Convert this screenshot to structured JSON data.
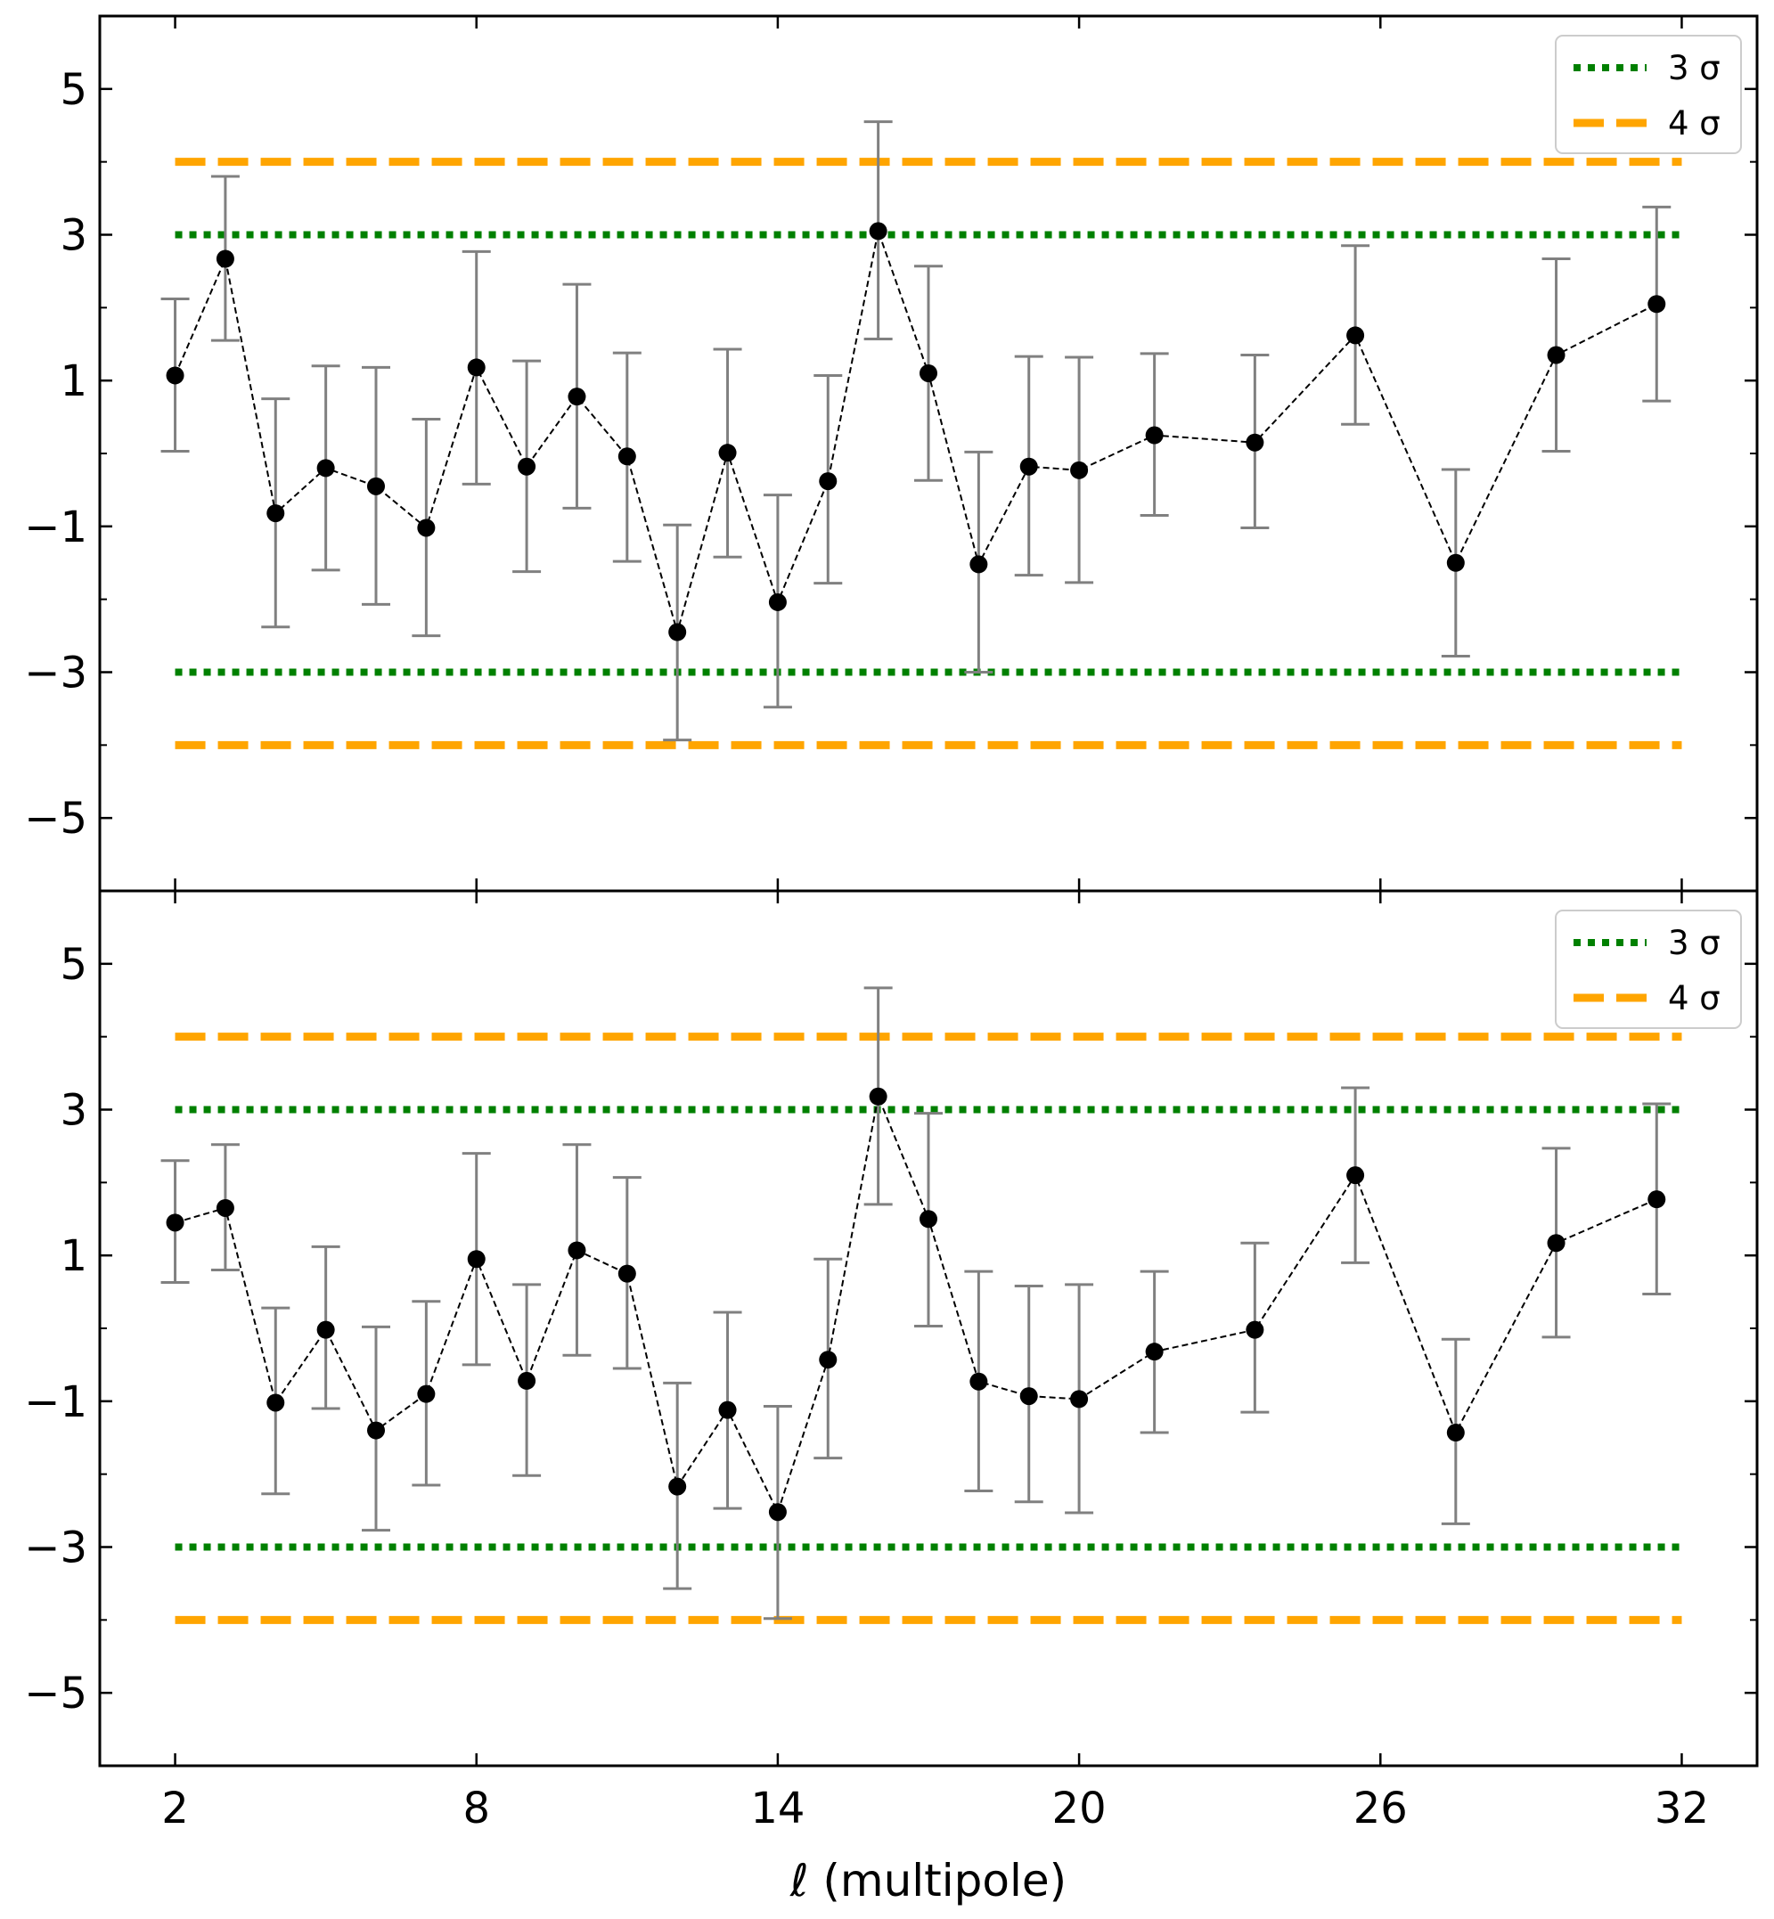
{
  "chart_data": {
    "type": "scatter",
    "xlabel": "ℓ (multipole)",
    "xlim": [
      0.5,
      33.5
    ],
    "xticks": [
      "2",
      "8",
      "14",
      "20",
      "26",
      "32"
    ],
    "xtick_values": [
      2,
      8,
      14,
      20,
      26,
      32
    ],
    "yticks": [
      "5",
      "3",
      "1",
      "−1",
      "−3",
      "−5"
    ],
    "ytick_values": [
      5,
      3,
      1,
      -1,
      -3,
      -5
    ],
    "ylim": [
      -6,
      6
    ],
    "legend": [
      {
        "label": "3 σ",
        "color": "#008000",
        "style": "dotted"
      },
      {
        "label": "4 σ",
        "color": "#ffa500",
        "style": "dashed"
      }
    ],
    "legend_loc": "top-right",
    "colors": {
      "points": "#000000",
      "errorbars": "#808080",
      "three_sigma": "#008000",
      "four_sigma": "#ffa500"
    },
    "panels": [
      {
        "name": "top",
        "x": [
          2,
          3,
          4,
          5,
          6,
          7,
          8,
          9,
          10,
          11,
          12,
          13,
          14,
          15,
          16,
          17,
          18,
          19,
          20,
          21.5,
          23.5,
          25.5,
          27.5,
          29.5,
          31.5
        ],
        "y": [
          1.07,
          2.67,
          -0.82,
          -0.2,
          -0.45,
          -1.02,
          1.18,
          -0.18,
          0.78,
          -0.04,
          -2.45,
          0.01,
          -2.04,
          -0.38,
          3.05,
          1.1,
          -1.52,
          -0.18,
          -0.23,
          0.25,
          0.15,
          1.62,
          -1.5,
          1.35,
          2.05
        ],
        "err_low": [
          0.03,
          1.55,
          -2.38,
          -1.6,
          -2.07,
          -2.5,
          -0.42,
          -1.62,
          -0.75,
          -1.48,
          -3.93,
          -1.42,
          -3.48,
          -1.78,
          1.57,
          -0.37,
          -3.0,
          -1.67,
          -1.77,
          -0.85,
          -1.02,
          0.4,
          -2.78,
          0.03,
          0.72
        ],
        "err_high": [
          2.12,
          3.8,
          0.75,
          1.2,
          1.18,
          0.47,
          2.77,
          1.27,
          2.32,
          1.38,
          -0.98,
          1.43,
          -0.57,
          1.07,
          4.55,
          2.57,
          0.02,
          1.33,
          1.32,
          1.37,
          1.35,
          2.85,
          -0.22,
          2.67,
          3.38
        ]
      },
      {
        "name": "bottom",
        "x": [
          2,
          3,
          4,
          5,
          6,
          7,
          8,
          9,
          10,
          11,
          12,
          13,
          14,
          15,
          16,
          17,
          18,
          19,
          20,
          21.5,
          23.5,
          25.5,
          27.5,
          29.5,
          31.5
        ],
        "y": [
          1.45,
          1.65,
          -1.02,
          -0.02,
          -1.4,
          -0.9,
          0.95,
          -0.72,
          1.07,
          0.75,
          -2.17,
          -1.12,
          -2.52,
          -0.43,
          3.18,
          1.5,
          -0.73,
          -0.93,
          -0.97,
          -0.32,
          -0.02,
          2.1,
          -1.43,
          1.17,
          1.77
        ],
        "err_low": [
          0.63,
          0.8,
          -2.27,
          -1.1,
          -2.77,
          -2.15,
          -0.5,
          -2.02,
          -0.37,
          -0.55,
          -3.57,
          -2.47,
          -3.98,
          -1.78,
          1.7,
          0.03,
          -2.23,
          -2.38,
          -2.53,
          -1.43,
          -1.15,
          0.9,
          -2.68,
          -0.12,
          0.47
        ],
        "err_high": [
          2.3,
          2.52,
          0.28,
          1.12,
          0.02,
          0.37,
          2.4,
          0.6,
          2.52,
          2.07,
          -0.75,
          0.22,
          -1.07,
          0.95,
          4.67,
          2.95,
          0.78,
          0.58,
          0.6,
          0.78,
          1.17,
          3.3,
          -0.15,
          2.47,
          3.08
        ]
      }
    ]
  }
}
